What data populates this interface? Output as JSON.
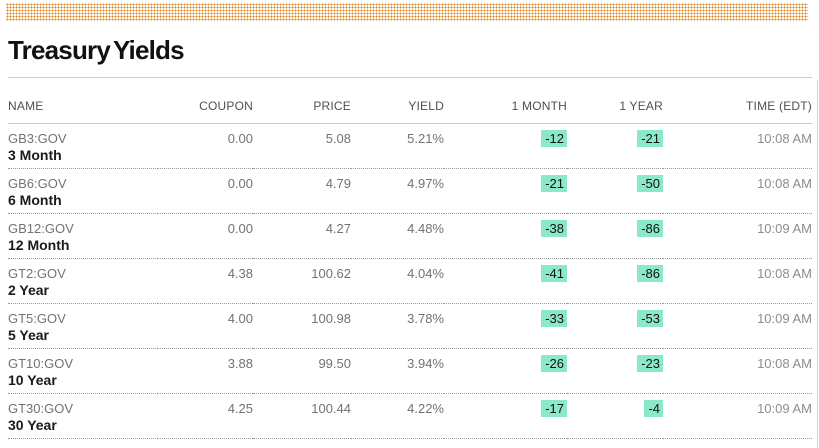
{
  "page": {
    "title": "Treasury Yields"
  },
  "colors": {
    "accent_band": "#DD861F",
    "badge_bg": "#8BE9C7",
    "title_text": "#111111",
    "header_text": "#4C5055",
    "ticker_text": "#6F7377",
    "tenor_text": "#1A1A1A",
    "time_text": "#8A8E91",
    "rule_solid": "#CCCCCC",
    "rule_dotted": "#999999"
  },
  "table": {
    "columns": [
      "NAME",
      "COUPON",
      "PRICE",
      "YIELD",
      "1 MONTH",
      "1 YEAR",
      "TIME (EDT)"
    ],
    "rows": [
      {
        "ticker": "GB3:GOV",
        "tenor": "3 Month",
        "coupon": "0.00",
        "price": "5.08",
        "yield": "5.21%",
        "one_month": "-12",
        "one_year": "-21",
        "time": "10:08 AM"
      },
      {
        "ticker": "GB6:GOV",
        "tenor": "6 Month",
        "coupon": "0.00",
        "price": "4.79",
        "yield": "4.97%",
        "one_month": "-21",
        "one_year": "-50",
        "time": "10:08 AM"
      },
      {
        "ticker": "GB12:GOV",
        "tenor": "12 Month",
        "coupon": "0.00",
        "price": "4.27",
        "yield": "4.48%",
        "one_month": "-38",
        "one_year": "-86",
        "time": "10:09 AM"
      },
      {
        "ticker": "GT2:GOV",
        "tenor": "2 Year",
        "coupon": "4.38",
        "price": "100.62",
        "yield": "4.04%",
        "one_month": "-41",
        "one_year": "-86",
        "time": "10:08 AM"
      },
      {
        "ticker": "GT5:GOV",
        "tenor": "5 Year",
        "coupon": "4.00",
        "price": "100.98",
        "yield": "3.78%",
        "one_month": "-33",
        "one_year": "-53",
        "time": "10:09 AM"
      },
      {
        "ticker": "GT10:GOV",
        "tenor": "10 Year",
        "coupon": "3.88",
        "price": "99.50",
        "yield": "3.94%",
        "one_month": "-26",
        "one_year": "-23",
        "time": "10:08 AM"
      },
      {
        "ticker": "GT30:GOV",
        "tenor": "30 Year",
        "coupon": "4.25",
        "price": "100.44",
        "yield": "4.22%",
        "one_month": "-17",
        "one_year": "-4",
        "time": "10:09 AM"
      }
    ]
  }
}
